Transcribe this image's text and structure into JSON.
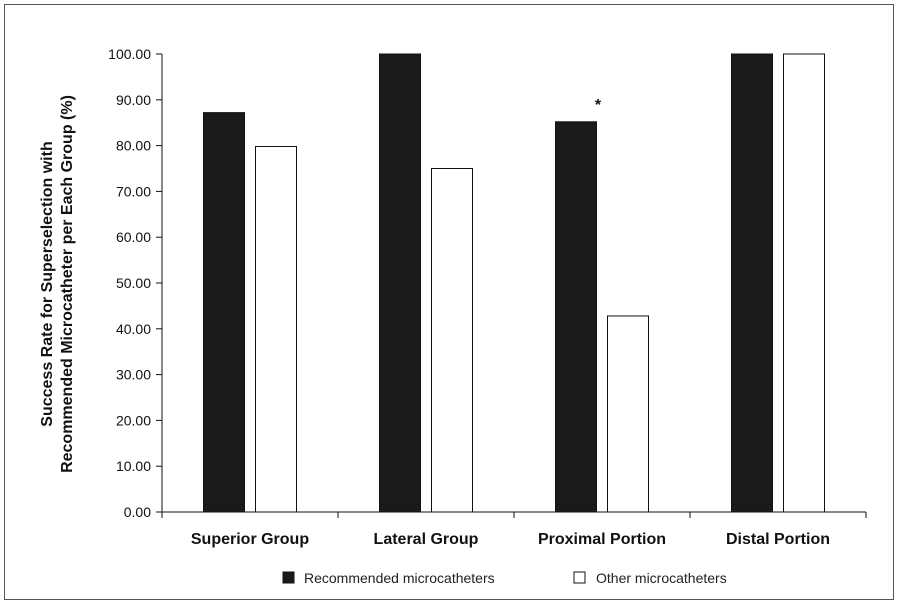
{
  "chart_data": {
    "type": "bar",
    "categories": [
      "Superior Group",
      "Lateral Group",
      "Proximal Portion",
      "Distal Portion"
    ],
    "series": [
      {
        "name": "Recommended microcatheters",
        "values": [
          87.2,
          100.0,
          85.2,
          100.0
        ],
        "color": "#1a1a1a"
      },
      {
        "name": "Other microcatheters",
        "values": [
          79.8,
          75.0,
          42.8,
          100.0
        ],
        "color": "#ffffff"
      }
    ],
    "ylabel_lines": [
      "Success Rate for Superselection with",
      "Recommended Microcatheter per Each Group (%)"
    ],
    "yticks": [
      "0.00",
      "10.00",
      "20.00",
      "30.00",
      "40.00",
      "50.00",
      "60.00",
      "70.00",
      "80.00",
      "90.00",
      "100.00"
    ],
    "ylim": [
      0,
      100
    ],
    "grid": false,
    "legend_position": "bottom",
    "annotations": [
      {
        "text": "*",
        "category": "Proximal Portion",
        "series": 0
      }
    ]
  }
}
